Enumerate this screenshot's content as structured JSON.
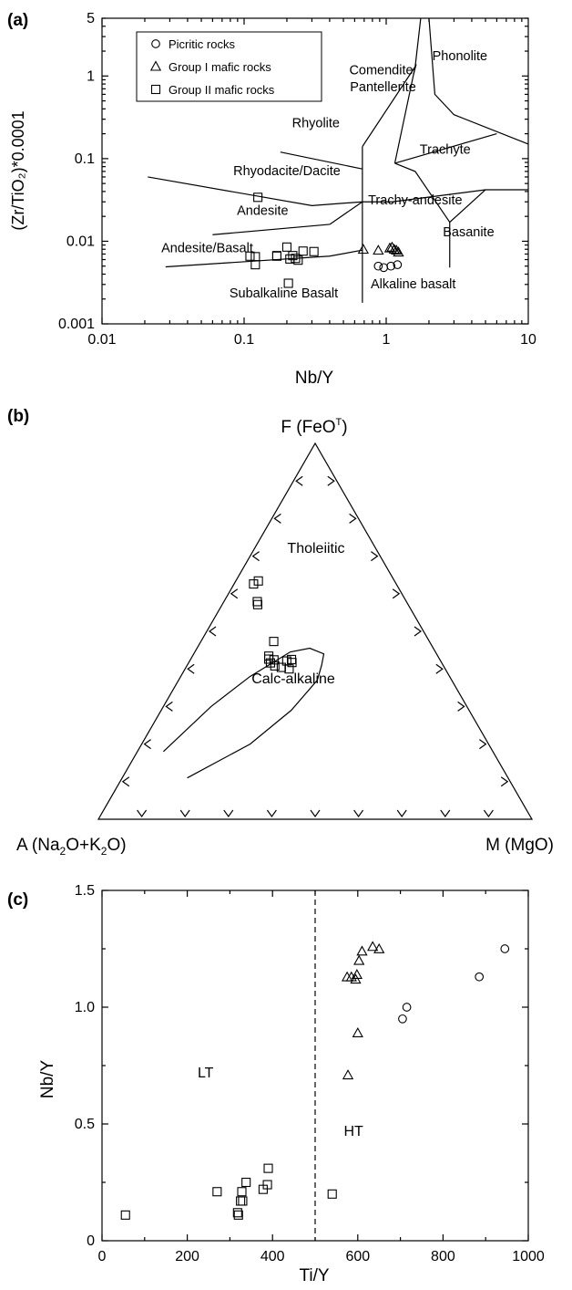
{
  "chart_data": [
    {
      "panel": "(a)",
      "type": "scatter",
      "xlabel": "Nb/Y",
      "ylabel": "(Zr/TiO₂)*0.0001",
      "x_scale": "log",
      "y_scale": "log",
      "xlim": [
        0.01,
        10
      ],
      "ylim": [
        0.001,
        5
      ],
      "x_ticks": [
        {
          "v": 0.01,
          "t": "0.01"
        },
        {
          "v": 0.1,
          "t": "0.1"
        },
        {
          "v": 1,
          "t": "1"
        },
        {
          "v": 10,
          "t": "10"
        }
      ],
      "y_ticks": [
        {
          "v": 0.001,
          "t": "0.001"
        },
        {
          "v": 0.01,
          "t": "0.01"
        },
        {
          "v": 0.1,
          "t": "0.1"
        },
        {
          "v": 1,
          "t": "1"
        },
        {
          "v": 5,
          "t": "5"
        }
      ],
      "legend": {
        "placement": "top-left",
        "entries": [
          {
            "marker": "circle",
            "label": "Picritic rocks"
          },
          {
            "marker": "triangle",
            "label": "Group I mafic rocks"
          },
          {
            "marker": "square",
            "label": "Group II mafic rocks"
          }
        ]
      },
      "field_labels": [
        {
          "text": "Comendite/",
          "x": 0.95,
          "y": 1.05
        },
        {
          "text": "Pantellerite",
          "x": 0.95,
          "y": 0.65
        },
        {
          "text": "Phonolite",
          "x": 3.3,
          "y": 1.55
        },
        {
          "text": "Rhyolite",
          "x": 0.32,
          "y": 0.24
        },
        {
          "text": "Trachyte",
          "x": 2.6,
          "y": 0.115
        },
        {
          "text": "Rhyodacite/Dacite",
          "x": 0.2,
          "y": 0.063
        },
        {
          "text": "Trachy-andesite",
          "x": 1.6,
          "y": 0.028
        },
        {
          "text": "Andesite",
          "x": 0.135,
          "y": 0.021
        },
        {
          "text": "Basanite",
          "x": 3.8,
          "y": 0.0115
        },
        {
          "text": "Andesite/Basalt",
          "x": 0.055,
          "y": 0.0074
        },
        {
          "text": "Alkaline basalt",
          "x": 1.55,
          "y": 0.0027
        },
        {
          "text": "Subalkaline Basalt",
          "x": 0.19,
          "y": 0.0021
        }
      ],
      "boundaries": [
        [
          [
            0.021,
            0.06
          ],
          [
            0.3,
            0.027
          ],
          [
            0.68,
            0.03
          ]
        ],
        [
          [
            0.06,
            0.012
          ],
          [
            0.4,
            0.016
          ]
        ],
        [
          [
            0.028,
            0.0049
          ],
          [
            0.4,
            0.0066
          ],
          [
            0.68,
            0.0078
          ]
        ],
        [
          [
            0.68,
            0.0018
          ],
          [
            0.68,
            0.03
          ],
          [
            0.68,
            0.14
          ]
        ],
        [
          [
            0.18,
            0.12
          ],
          [
            0.68,
            0.075
          ]
        ],
        [
          [
            0.4,
            0.016
          ],
          [
            0.68,
            0.03
          ],
          [
            1.1,
            0.03
          ],
          [
            5,
            0.042
          ],
          [
            10,
            0.042
          ]
        ],
        [
          [
            0.68,
            0.14
          ],
          [
            1.6,
            1.3
          ],
          [
            1.75,
            5
          ]
        ],
        [
          [
            1.6,
            1.3
          ],
          [
            1.15,
            0.088
          ]
        ],
        [
          [
            1.15,
            0.088
          ],
          [
            6,
            0.2
          ]
        ],
        [
          [
            2.8,
            0.0048
          ],
          [
            2.8,
            0.017
          ],
          [
            5,
            0.042
          ]
        ],
        [
          [
            1.15,
            0.088
          ],
          [
            1.6,
            0.07
          ],
          [
            2.8,
            0.017
          ]
        ],
        [
          [
            2.0,
            5
          ],
          [
            2.2,
            0.6
          ],
          [
            3.0,
            0.34
          ],
          [
            10,
            0.15
          ]
        ]
      ],
      "series": [
        {
          "name": "Picritic rocks",
          "marker": "circle",
          "points": [
            [
              0.88,
              0.005
            ],
            [
              0.96,
              0.0048
            ],
            [
              1.08,
              0.005
            ],
            [
              1.2,
              0.0052
            ]
          ]
        },
        {
          "name": "Group I mafic rocks",
          "marker": "triangle",
          "points": [
            [
              0.69,
              0.008
            ],
            [
              0.88,
              0.0078
            ],
            [
              1.06,
              0.0083
            ],
            [
              1.1,
              0.0085
            ],
            [
              1.14,
              0.008
            ],
            [
              1.18,
              0.0078
            ],
            [
              1.22,
              0.0074
            ]
          ]
        },
        {
          "name": "Group II mafic rocks",
          "marker": "square",
          "points": [
            [
              0.125,
              0.034
            ],
            [
              0.11,
              0.0066
            ],
            [
              0.12,
              0.0065
            ],
            [
              0.12,
              0.0052
            ],
            [
              0.17,
              0.0066
            ],
            [
              0.17,
              0.0067
            ],
            [
              0.2,
              0.0085
            ],
            [
              0.21,
              0.0061
            ],
            [
              0.22,
              0.0067
            ],
            [
              0.23,
              0.0062
            ],
            [
              0.24,
              0.0059
            ],
            [
              0.26,
              0.0076
            ],
            [
              0.31,
              0.0075
            ],
            [
              0.205,
              0.0031
            ]
          ]
        }
      ]
    },
    {
      "panel": "(b)",
      "type": "scatter",
      "subtype": "ternary",
      "apex_labels": {
        "top": {
          "pre": "F (FeO",
          "sup": "T",
          "post": ")"
        },
        "left": {
          "pre": "A (Na",
          "s1": "2",
          "mid": "O+K",
          "s2": "2",
          "post": "O)"
        },
        "right": "M (MgO)"
      },
      "field_labels": [
        "Tholeiitic",
        "Calc-alkaline"
      ],
      "ticks_per_side": 9,
      "boundary": [
        [
          0.15,
          0.11
        ],
        [
          0.25,
          0.2
        ],
        [
          0.3,
          0.29
        ],
        [
          0.32,
          0.37
        ],
        [
          0.31,
          0.41
        ],
        [
          0.3,
          0.44
        ],
        [
          0.26,
          0.455
        ],
        [
          0.22,
          0.445
        ],
        [
          0.16,
          0.38
        ],
        [
          0.11,
          0.3
        ],
        [
          0.06,
          0.18
        ]
      ],
      "series": [
        {
          "name": "Group II mafic rocks",
          "marker": "square",
          "points": [
            [
              0.045,
              0.626
            ],
            [
              0.052,
              0.634
            ],
            [
              0.082,
              0.571
            ],
            [
              0.077,
              0.579
            ],
            [
              0.168,
              0.473
            ],
            [
              0.176,
              0.434
            ],
            [
              0.18,
              0.426
            ],
            [
              0.203,
              0.408
            ],
            [
              0.189,
              0.416
            ],
            [
              0.193,
              0.424
            ],
            [
              0.224,
              0.421
            ],
            [
              0.233,
              0.425
            ],
            [
              0.22,
              0.404
            ],
            [
              0.24,
              0.4
            ],
            [
              0.238,
              0.417
            ]
          ]
        }
      ]
    },
    {
      "panel": "(c)",
      "type": "scatter",
      "xlabel": "Ti/Y",
      "ylabel": "Nb/Y",
      "xlim": [
        0,
        1000
      ],
      "ylim": [
        0,
        1.5
      ],
      "x_ticks": [
        {
          "v": 0,
          "t": "0"
        },
        {
          "v": 200,
          "t": "200"
        },
        {
          "v": 400,
          "t": "400"
        },
        {
          "v": 600,
          "t": "600"
        },
        {
          "v": 800,
          "t": "800"
        },
        {
          "v": 1000,
          "t": "1000"
        }
      ],
      "y_ticks": [
        {
          "v": 0,
          "t": "0"
        },
        {
          "v": 0.5,
          "t": "0.5"
        },
        {
          "v": 1.0,
          "t": "1.0"
        },
        {
          "v": 1.5,
          "t": "1.5"
        }
      ],
      "divider_x": 500,
      "field_labels": [
        {
          "text": "LT",
          "x": 243,
          "y": 0.7
        },
        {
          "text": "HT",
          "x": 590,
          "y": 0.45
        }
      ],
      "series": [
        {
          "name": "Picritic rocks",
          "marker": "circle",
          "points": [
            [
              705,
              0.95
            ],
            [
              715,
              1.0
            ],
            [
              885,
              1.13
            ],
            [
              945,
              1.25
            ]
          ]
        },
        {
          "name": "Group I mafic rocks",
          "marker": "triangle",
          "points": [
            [
              575,
              1.13
            ],
            [
              585,
              1.13
            ],
            [
              595,
              1.12
            ],
            [
              598,
              1.14
            ],
            [
              603,
              1.2
            ],
            [
              610,
              1.24
            ],
            [
              635,
              1.26
            ],
            [
              650,
              1.25
            ],
            [
              600,
              0.89
            ],
            [
              577,
              0.71
            ]
          ]
        },
        {
          "name": "Group II mafic rocks",
          "marker": "square",
          "points": [
            [
              55,
              0.11
            ],
            [
              270,
              0.21
            ],
            [
              318,
              0.12
            ],
            [
              320,
              0.11
            ],
            [
              325,
              0.17
            ],
            [
              328,
              0.21
            ],
            [
              330,
              0.17
            ],
            [
              338,
              0.25
            ],
            [
              378,
              0.22
            ],
            [
              388,
              0.24
            ],
            [
              390,
              0.31
            ],
            [
              540,
              0.2
            ]
          ]
        }
      ]
    }
  ]
}
